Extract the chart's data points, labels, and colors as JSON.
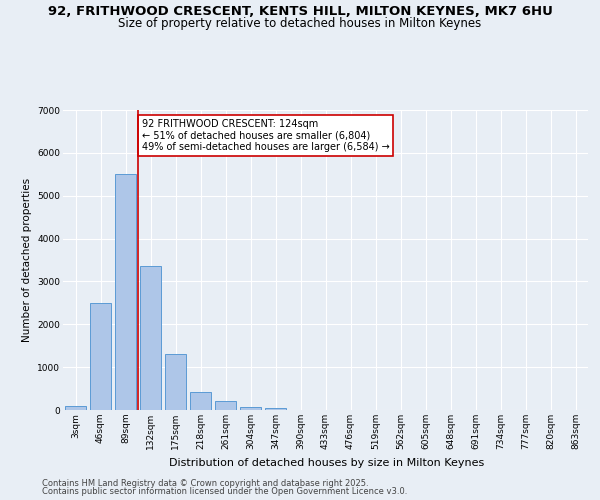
{
  "title_line1": "92, FRITHWOOD CRESCENT, KENTS HILL, MILTON KEYNES, MK7 6HU",
  "title_line2": "Size of property relative to detached houses in Milton Keynes",
  "xlabel": "Distribution of detached houses by size in Milton Keynes",
  "ylabel": "Number of detached properties",
  "categories": [
    "3sqm",
    "46sqm",
    "89sqm",
    "132sqm",
    "175sqm",
    "218sqm",
    "261sqm",
    "304sqm",
    "347sqm",
    "390sqm",
    "433sqm",
    "476sqm",
    "519sqm",
    "562sqm",
    "605sqm",
    "648sqm",
    "691sqm",
    "734sqm",
    "777sqm",
    "820sqm",
    "863sqm"
  ],
  "values": [
    100,
    2500,
    5500,
    3350,
    1300,
    430,
    200,
    80,
    40,
    0,
    0,
    0,
    0,
    0,
    0,
    0,
    0,
    0,
    0,
    0,
    0
  ],
  "bar_color": "#aec6e8",
  "bar_edge_color": "#5b9bd5",
  "vline_x": 2.5,
  "vline_color": "#cc0000",
  "annotation_text": "92 FRITHWOOD CRESCENT: 124sqm\n← 51% of detached houses are smaller (6,804)\n49% of semi-detached houses are larger (6,584) →",
  "annotation_box_color": "#ffffff",
  "annotation_box_edge_color": "#cc0000",
  "ylim": [
    0,
    7000
  ],
  "yticks": [
    0,
    1000,
    2000,
    3000,
    4000,
    5000,
    6000,
    7000
  ],
  "bg_color": "#e8eef5",
  "plot_bg_color": "#e8eef5",
  "grid_color": "#ffffff",
  "footer_line1": "Contains HM Land Registry data © Crown copyright and database right 2025.",
  "footer_line2": "Contains public sector information licensed under the Open Government Licence v3.0.",
  "title_fontsize": 9.5,
  "subtitle_fontsize": 8.5,
  "xlabel_fontsize": 8,
  "ylabel_fontsize": 7.5,
  "tick_fontsize": 6.5,
  "annotation_fontsize": 7,
  "footer_fontsize": 6
}
